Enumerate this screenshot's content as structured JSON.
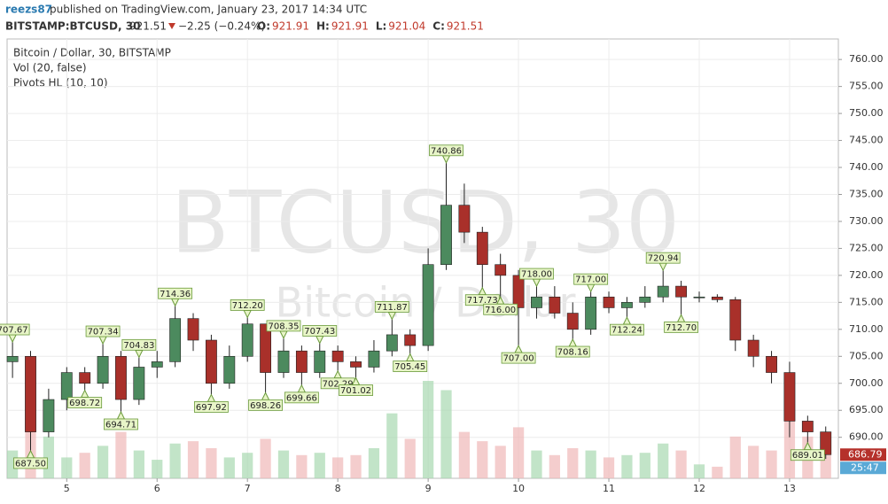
{
  "header": {
    "author": "reezs87",
    "published": "published on TradingView.com, January 23, 2017 14:34 UTC",
    "symbol": "BITSTAMP:BTCUSD, 30",
    "last": "921.51",
    "change": "−2.25 (−0.24%)",
    "ohlc": [
      {
        "key": "O:",
        "value": "921.91"
      },
      {
        "key": "H:",
        "value": "921.91"
      },
      {
        "key": "L:",
        "value": "921.04"
      },
      {
        "key": "C:",
        "value": "921.51"
      }
    ]
  },
  "chart_data": {
    "type": "candlestick",
    "title": "Bitcoin / Dollar, 30, BITSTAMP",
    "indicators": [
      "Vol (20, false)",
      "Pivots HL (10, 10)"
    ],
    "watermark": "BTCUSD, 30",
    "watermark_sub": "Bitcoin / Dollar",
    "up_color": "#4c8a5e",
    "down_color": "#a9302a",
    "grid": true,
    "xlim": [
      4.34,
      13.54
    ],
    "xticks": [
      5,
      6,
      7,
      8,
      9,
      10,
      11,
      12,
      13
    ],
    "ylim": [
      682.4,
      763.8
    ],
    "yticks": [
      {
        "value": 690,
        "label": "690.00"
      },
      {
        "value": 695,
        "label": "695.00"
      },
      {
        "value": 700,
        "label": "700.00"
      },
      {
        "value": 705,
        "label": "705.00"
      },
      {
        "value": 710,
        "label": "710.00"
      },
      {
        "value": 715,
        "label": "715.00"
      },
      {
        "value": 720,
        "label": "720.00"
      },
      {
        "value": 725,
        "label": "725.00"
      },
      {
        "value": 730,
        "label": "730.00"
      },
      {
        "value": 735,
        "label": "735.00"
      },
      {
        "value": 740,
        "label": "740.00"
      },
      {
        "value": 745,
        "label": "745.00"
      },
      {
        "value": 750,
        "label": "750.00"
      },
      {
        "value": 755,
        "label": "755.00"
      },
      {
        "value": 760,
        "label": "760.00"
      }
    ],
    "x": [
      4.4,
      4.6,
      4.8,
      5.0,
      5.2,
      5.4,
      5.6,
      5.8,
      6.0,
      6.2,
      6.4,
      6.6,
      6.8,
      7.0,
      7.2,
      7.4,
      7.6,
      7.8,
      8.0,
      8.2,
      8.4,
      8.6,
      8.8,
      9.0,
      9.2,
      9.4,
      9.6,
      9.8,
      10.0,
      10.2,
      10.4,
      10.6,
      10.8,
      11.0,
      11.2,
      11.4,
      11.6,
      11.8,
      12.0,
      12.2,
      12.4,
      12.6,
      12.8,
      13.0,
      13.2,
      13.4
    ],
    "ohlc": [
      [
        704,
        707.67,
        701,
        705
      ],
      [
        705,
        706,
        687.5,
        691
      ],
      [
        691,
        699,
        690,
        697
      ],
      [
        697,
        703,
        695,
        702
      ],
      [
        702,
        703,
        698.72,
        700
      ],
      [
        700,
        707.34,
        699,
        705
      ],
      [
        705,
        706,
        694.71,
        697
      ],
      [
        697,
        704.83,
        696,
        703
      ],
      [
        703,
        706,
        701,
        704
      ],
      [
        704,
        714.36,
        703,
        712
      ],
      [
        712,
        713,
        706,
        708
      ],
      [
        708,
        709,
        697.92,
        700
      ],
      [
        700,
        707,
        699,
        705
      ],
      [
        705,
        712.2,
        704,
        711
      ],
      [
        711,
        711,
        698.26,
        702
      ],
      [
        702,
        708.35,
        701,
        706
      ],
      [
        706,
        707,
        699.66,
        702
      ],
      [
        702,
        707.43,
        701,
        706
      ],
      [
        706,
        707,
        702.29,
        704
      ],
      [
        704,
        705,
        701.02,
        703
      ],
      [
        703,
        708,
        702,
        706
      ],
      [
        706,
        711.87,
        705,
        709
      ],
      [
        709,
        710,
        705.45,
        707
      ],
      [
        707,
        725,
        706,
        722
      ],
      [
        722,
        740.86,
        721,
        733
      ],
      [
        733,
        737,
        726,
        728
      ],
      [
        728,
        729,
        717.73,
        722
      ],
      [
        722,
        724,
        716,
        720
      ],
      [
        720,
        721,
        707,
        714
      ],
      [
        714,
        718,
        712,
        716
      ],
      [
        716,
        718,
        712,
        713
      ],
      [
        713,
        715,
        708.16,
        710
      ],
      [
        710,
        717,
        709,
        716
      ],
      [
        716,
        717,
        713,
        714
      ],
      [
        714,
        716,
        712.24,
        715
      ],
      [
        715,
        718,
        714,
        716
      ],
      [
        716,
        720.94,
        715,
        718
      ],
      [
        718,
        719,
        712.7,
        716
      ],
      [
        716,
        717,
        715,
        716
      ],
      [
        716,
        716.5,
        715,
        715.5
      ],
      [
        715.5,
        716,
        706,
        708
      ],
      [
        708,
        709,
        703,
        705
      ],
      [
        705,
        706,
        700,
        702
      ],
      [
        702,
        704,
        690,
        693
      ],
      [
        693,
        694,
        689.01,
        691
      ],
      [
        691,
        692,
        686,
        686.79
      ]
    ],
    "volume": [
      120,
      260,
      180,
      90,
      110,
      140,
      200,
      120,
      80,
      150,
      160,
      130,
      90,
      110,
      170,
      120,
      100,
      110,
      90,
      100,
      130,
      280,
      170,
      420,
      380,
      200,
      160,
      140,
      220,
      120,
      100,
      130,
      120,
      90,
      100,
      110,
      150,
      120,
      60,
      50,
      180,
      140,
      120,
      260,
      180,
      200
    ],
    "pivots": [
      {
        "x": 4.4,
        "value": 707.67,
        "label": "707.67",
        "kind": "high"
      },
      {
        "x": 4.6,
        "value": 687.5,
        "label": "687.50",
        "kind": "low"
      },
      {
        "x": 5.2,
        "value": 698.72,
        "label": "698.72",
        "kind": "low"
      },
      {
        "x": 5.4,
        "value": 707.34,
        "label": "707.34",
        "kind": "high"
      },
      {
        "x": 5.6,
        "value": 694.71,
        "label": "694.71",
        "kind": "low"
      },
      {
        "x": 5.8,
        "value": 704.83,
        "label": "704.83",
        "kind": "high"
      },
      {
        "x": 6.2,
        "value": 714.36,
        "label": "714.36",
        "kind": "high"
      },
      {
        "x": 6.6,
        "value": 697.92,
        "label": "697.92",
        "kind": "low"
      },
      {
        "x": 7.0,
        "value": 712.2,
        "label": "712.20",
        "kind": "high"
      },
      {
        "x": 7.2,
        "value": 698.26,
        "label": "698.26",
        "kind": "low"
      },
      {
        "x": 7.4,
        "value": 708.35,
        "label": "708.35",
        "kind": "high"
      },
      {
        "x": 7.6,
        "value": 699.66,
        "label": "699.66",
        "kind": "low"
      },
      {
        "x": 7.8,
        "value": 707.43,
        "label": "707.43",
        "kind": "high"
      },
      {
        "x": 8.0,
        "value": 702.29,
        "label": "702.29",
        "kind": "low"
      },
      {
        "x": 8.2,
        "value": 701.02,
        "label": "701.02",
        "kind": "low"
      },
      {
        "x": 8.6,
        "value": 711.87,
        "label": "711.87",
        "kind": "high"
      },
      {
        "x": 8.8,
        "value": 705.45,
        "label": "705.45",
        "kind": "low"
      },
      {
        "x": 9.2,
        "value": 740.86,
        "label": "740.86",
        "kind": "high"
      },
      {
        "x": 9.6,
        "value": 717.73,
        "label": "717.73",
        "kind": "low"
      },
      {
        "x": 9.8,
        "value": 716,
        "label": "716.00",
        "kind": "low"
      },
      {
        "x": 10.0,
        "value": 707,
        "label": "707.00",
        "kind": "low"
      },
      {
        "x": 10.2,
        "value": 718,
        "label": "718.00",
        "kind": "high"
      },
      {
        "x": 10.6,
        "value": 708.16,
        "label": "708.16",
        "kind": "low"
      },
      {
        "x": 10.8,
        "value": 717,
        "label": "717.00",
        "kind": "high"
      },
      {
        "x": 11.2,
        "value": 712.24,
        "label": "712.24",
        "kind": "low"
      },
      {
        "x": 11.6,
        "value": 720.94,
        "label": "720.94",
        "kind": "high"
      },
      {
        "x": 11.8,
        "value": 712.7,
        "label": "712.70",
        "kind": "low"
      },
      {
        "x": 13.2,
        "value": 689.01,
        "label": "689.01",
        "kind": "low"
      }
    ],
    "last_price": {
      "value": 686.79,
      "label": "686.79"
    },
    "countdown": "25:47"
  }
}
